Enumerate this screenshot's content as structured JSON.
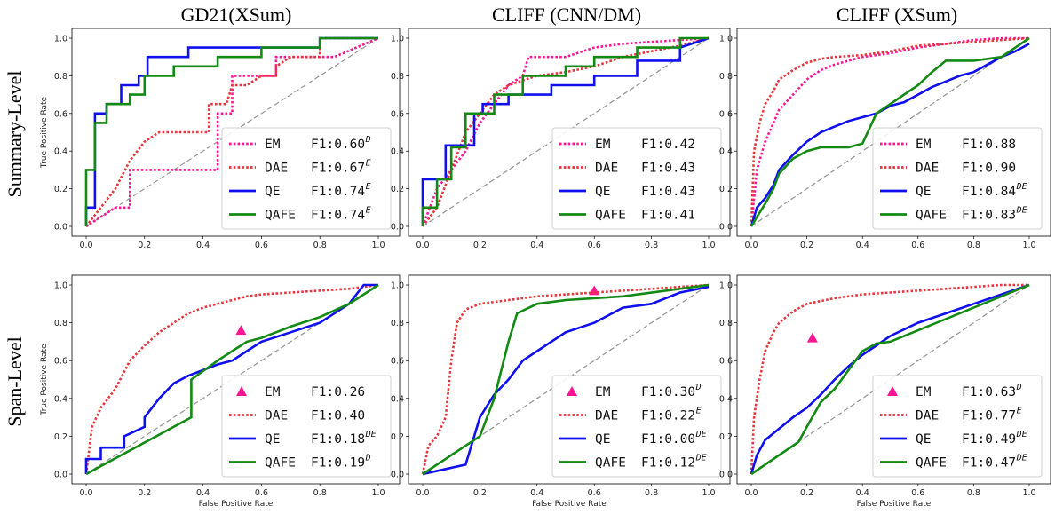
{
  "figure": {
    "col_titles": [
      "GD21(XSum)",
      "CLIFF (CNN/DM)",
      "CLIFF (XSum)"
    ],
    "row_titles": [
      "Summary-Level",
      "Span-Level"
    ],
    "xlabel": "False Positive Rate",
    "ylabel": "True Positive Rate",
    "ticks": [
      "0.0",
      "0.2",
      "0.4",
      "0.6",
      "0.8",
      "1.0"
    ]
  },
  "colors": {
    "EM": "#ff1493",
    "DAE": "#e8343c",
    "QE": "#1010ee",
    "QAFE": "#138a13",
    "diagonal": "#999999"
  },
  "chart_data": [
    {
      "type": "line",
      "dataset": "GD21(XSum)",
      "level": "Summary-Level",
      "xlabel": "",
      "ylabel": "True Positive Rate",
      "xlim": [
        0,
        1
      ],
      "ylim": [
        0,
        1
      ],
      "grid": false,
      "legend_position": "lower-right",
      "series": [
        {
          "name": "EM",
          "style": "dotted",
          "f1": "F1:0.60",
          "sup": "D",
          "x": [
            0,
            0.05,
            0.1,
            0.15,
            0.15,
            0.3,
            0.45,
            0.45,
            0.5,
            0.5,
            0.6,
            0.65,
            0.65,
            0.75,
            0.85,
            1.0
          ],
          "y": [
            0,
            0.05,
            0.1,
            0.1,
            0.3,
            0.3,
            0.3,
            0.6,
            0.6,
            0.8,
            0.8,
            0.8,
            0.9,
            0.9,
            0.9,
            1.0
          ]
        },
        {
          "name": "DAE",
          "style": "dotted",
          "f1": "F1:0.67",
          "sup": "E",
          "x": [
            0,
            0.05,
            0.1,
            0.15,
            0.2,
            0.25,
            0.35,
            0.42,
            0.42,
            0.48,
            0.5,
            0.55,
            0.6,
            0.65,
            0.65,
            0.7,
            0.8,
            0.8,
            1.0
          ],
          "y": [
            0,
            0.1,
            0.2,
            0.35,
            0.45,
            0.5,
            0.5,
            0.5,
            0.65,
            0.65,
            0.75,
            0.75,
            0.8,
            0.8,
            0.85,
            0.9,
            0.9,
            1.0,
            1.0
          ]
        },
        {
          "name": "QE",
          "style": "solid",
          "f1": "F1:0.74",
          "sup": "E",
          "x": [
            0,
            0,
            0.01,
            0.03,
            0.03,
            0.07,
            0.07,
            0.12,
            0.12,
            0.18,
            0.18,
            0.21,
            0.21,
            0.35,
            0.35,
            0.8,
            0.8,
            0.85,
            0.85,
            1.0
          ],
          "y": [
            0,
            0.1,
            0.1,
            0.1,
            0.6,
            0.6,
            0.65,
            0.65,
            0.75,
            0.75,
            0.8,
            0.8,
            0.9,
            0.9,
            0.95,
            0.95,
            1.0,
            1.0,
            1.0,
            1.0
          ]
        },
        {
          "name": "QAFE",
          "style": "solid",
          "f1": "F1:0.74",
          "sup": "E",
          "x": [
            0,
            0,
            0.03,
            0.03,
            0.07,
            0.07,
            0.15,
            0.15,
            0.2,
            0.2,
            0.3,
            0.3,
            0.45,
            0.45,
            0.6,
            0.6,
            0.8,
            0.8,
            1.0
          ],
          "y": [
            0,
            0.3,
            0.3,
            0.55,
            0.55,
            0.65,
            0.65,
            0.7,
            0.7,
            0.8,
            0.8,
            0.85,
            0.85,
            0.9,
            0.9,
            0.95,
            0.95,
            1.0,
            1.0
          ]
        }
      ]
    },
    {
      "type": "line",
      "dataset": "CLIFF (CNN/DM)",
      "level": "Summary-Level",
      "xlabel": "",
      "ylabel": "",
      "xlim": [
        0,
        1
      ],
      "ylim": [
        0,
        1
      ],
      "grid": false,
      "legend_position": "lower-right",
      "series": [
        {
          "name": "EM",
          "style": "dotted",
          "f1": "F1:0.42",
          "sup": "",
          "x": [
            0,
            0.05,
            0.1,
            0.15,
            0.2,
            0.25,
            0.3,
            0.35,
            0.37,
            0.4,
            0.5,
            0.6,
            0.7,
            0.8,
            0.9,
            1.0
          ],
          "y": [
            0,
            0.2,
            0.3,
            0.4,
            0.55,
            0.65,
            0.75,
            0.8,
            0.9,
            0.9,
            0.9,
            0.95,
            0.97,
            0.98,
            0.99,
            1.0
          ]
        },
        {
          "name": "DAE",
          "style": "dotted",
          "f1": "F1:0.43",
          "sup": "",
          "x": [
            0,
            0.05,
            0.1,
            0.15,
            0.2,
            0.25,
            0.3,
            0.4,
            0.5,
            0.6,
            0.7,
            0.8,
            0.9,
            1.0
          ],
          "y": [
            0,
            0.1,
            0.3,
            0.5,
            0.6,
            0.7,
            0.75,
            0.8,
            0.82,
            0.85,
            0.9,
            0.93,
            0.96,
            1.0
          ]
        },
        {
          "name": "QE",
          "style": "solid",
          "f1": "F1:0.43",
          "sup": "",
          "x": [
            0,
            0,
            0.08,
            0.08,
            0.18,
            0.18,
            0.21,
            0.21,
            0.3,
            0.3,
            0.45,
            0.45,
            0.6,
            0.6,
            0.75,
            0.75,
            0.9,
            0.9,
            1.0
          ],
          "y": [
            0,
            0.25,
            0.25,
            0.43,
            0.43,
            0.6,
            0.6,
            0.65,
            0.65,
            0.7,
            0.7,
            0.75,
            0.75,
            0.8,
            0.8,
            0.88,
            0.88,
            0.95,
            1.0
          ]
        },
        {
          "name": "QAFE",
          "style": "solid",
          "f1": "F1:0.41",
          "sup": "",
          "x": [
            0,
            0,
            0.05,
            0.05,
            0.1,
            0.1,
            0.15,
            0.15,
            0.25,
            0.25,
            0.35,
            0.35,
            0.5,
            0.5,
            0.6,
            0.6,
            0.75,
            0.75,
            0.9,
            0.9,
            1.0
          ],
          "y": [
            0,
            0.1,
            0.1,
            0.25,
            0.25,
            0.42,
            0.42,
            0.6,
            0.6,
            0.7,
            0.7,
            0.8,
            0.8,
            0.85,
            0.85,
            0.9,
            0.9,
            0.95,
            0.95,
            1.0,
            1.0
          ]
        }
      ]
    },
    {
      "type": "line",
      "dataset": "CLIFF (XSum)",
      "level": "Summary-Level",
      "xlabel": "",
      "ylabel": "",
      "xlim": [
        0,
        1
      ],
      "ylim": [
        0,
        1
      ],
      "grid": false,
      "legend_position": "lower-right",
      "series": [
        {
          "name": "EM",
          "style": "dotted",
          "f1": "F1:0.88",
          "sup": "",
          "x": [
            0,
            0.02,
            0.05,
            0.08,
            0.1,
            0.15,
            0.2,
            0.25,
            0.3,
            0.35,
            0.4,
            0.5,
            0.6,
            0.7,
            0.8,
            0.9,
            1.0
          ],
          "y": [
            0,
            0.3,
            0.45,
            0.55,
            0.62,
            0.7,
            0.78,
            0.83,
            0.86,
            0.88,
            0.9,
            0.92,
            0.95,
            0.97,
            0.99,
            1.0,
            1.0
          ]
        },
        {
          "name": "DAE",
          "style": "dotted",
          "f1": "F1:0.90",
          "sup": "",
          "x": [
            0,
            0.01,
            0.03,
            0.05,
            0.08,
            0.1,
            0.15,
            0.2,
            0.25,
            0.3,
            0.4,
            0.5,
            0.6,
            0.7,
            0.8,
            0.9,
            1.0
          ],
          "y": [
            0,
            0.4,
            0.55,
            0.65,
            0.72,
            0.78,
            0.83,
            0.87,
            0.89,
            0.9,
            0.91,
            0.93,
            0.96,
            0.97,
            0.98,
            0.99,
            1.0
          ]
        },
        {
          "name": "QE",
          "style": "solid",
          "f1": "F1:0.84",
          "sup": "DE",
          "x": [
            0,
            0.02,
            0.05,
            0.08,
            0.1,
            0.15,
            0.2,
            0.25,
            0.3,
            0.35,
            0.4,
            0.45,
            0.5,
            0.55,
            0.6,
            0.65,
            0.7,
            0.75,
            0.8,
            0.85,
            0.9,
            0.95,
            1.0
          ],
          "y": [
            0,
            0.1,
            0.15,
            0.22,
            0.3,
            0.38,
            0.45,
            0.5,
            0.53,
            0.56,
            0.58,
            0.6,
            0.64,
            0.66,
            0.7,
            0.74,
            0.77,
            0.8,
            0.82,
            0.86,
            0.9,
            0.93,
            0.97
          ]
        },
        {
          "name": "QAFE",
          "style": "solid",
          "f1": "F1:0.83",
          "sup": "DE",
          "x": [
            0,
            0.02,
            0.05,
            0.08,
            0.1,
            0.15,
            0.2,
            0.25,
            0.3,
            0.35,
            0.4,
            0.45,
            0.5,
            0.55,
            0.6,
            0.65,
            0.7,
            0.8,
            0.9,
            1.0
          ],
          "y": [
            0,
            0.05,
            0.12,
            0.2,
            0.28,
            0.36,
            0.4,
            0.42,
            0.42,
            0.42,
            0.44,
            0.6,
            0.65,
            0.7,
            0.75,
            0.82,
            0.88,
            0.88,
            0.9,
            1.0
          ]
        }
      ]
    },
    {
      "type": "line",
      "dataset": "GD21(XSum)",
      "level": "Span-Level",
      "xlabel": "False Positive Rate",
      "ylabel": "True Positive Rate",
      "xlim": [
        0,
        1
      ],
      "ylim": [
        0,
        1
      ],
      "grid": false,
      "legend_position": "lower-right",
      "series": [
        {
          "name": "EM",
          "style": "marker",
          "f1": "F1:0.26",
          "sup": "",
          "x": [
            0.53
          ],
          "y": [
            0.76
          ]
        },
        {
          "name": "DAE",
          "style": "dotted",
          "f1": "F1:0.40",
          "sup": "",
          "x": [
            0,
            0.02,
            0.05,
            0.1,
            0.15,
            0.2,
            0.25,
            0.3,
            0.35,
            0.4,
            0.45,
            0.5,
            0.55,
            0.6,
            0.7,
            0.8,
            0.9,
            1.0
          ],
          "y": [
            0,
            0.25,
            0.35,
            0.45,
            0.6,
            0.68,
            0.75,
            0.8,
            0.85,
            0.88,
            0.9,
            0.92,
            0.94,
            0.95,
            0.96,
            0.97,
            0.98,
            1.0
          ]
        },
        {
          "name": "QE",
          "style": "solid",
          "f1": "F1:0.18",
          "sup": "DE",
          "x": [
            0,
            0,
            0.05,
            0.05,
            0.13,
            0.13,
            0.2,
            0.2,
            0.25,
            0.3,
            0.35,
            0.4,
            0.45,
            0.5,
            0.55,
            0.6,
            0.7,
            0.8,
            0.9,
            0.95,
            1.0
          ],
          "y": [
            0,
            0.08,
            0.08,
            0.14,
            0.14,
            0.2,
            0.25,
            0.3,
            0.4,
            0.48,
            0.52,
            0.55,
            0.58,
            0.6,
            0.65,
            0.7,
            0.75,
            0.8,
            0.9,
            1.0,
            1.0
          ]
        },
        {
          "name": "QAFE",
          "style": "solid",
          "f1": "F1:0.19",
          "sup": "D",
          "x": [
            0,
            0.36,
            0.36,
            0.45,
            0.5,
            0.55,
            0.6,
            0.65,
            0.7,
            0.8,
            0.9,
            1.0
          ],
          "y": [
            0,
            0.3,
            0.5,
            0.6,
            0.65,
            0.7,
            0.72,
            0.75,
            0.78,
            0.83,
            0.9,
            1.0
          ]
        }
      ]
    },
    {
      "type": "line",
      "dataset": "CLIFF (CNN/DM)",
      "level": "Span-Level",
      "xlabel": "False Positive Rate",
      "ylabel": "",
      "xlim": [
        0,
        1
      ],
      "ylim": [
        0,
        1
      ],
      "grid": false,
      "legend_position": "lower-right",
      "series": [
        {
          "name": "EM",
          "style": "marker",
          "f1": "F1:0.30",
          "sup": "D",
          "x": [
            0.6
          ],
          "y": [
            0.97
          ]
        },
        {
          "name": "DAE",
          "style": "dotted",
          "f1": "F1:0.22",
          "sup": "E",
          "x": [
            0,
            0.02,
            0.05,
            0.08,
            0.1,
            0.12,
            0.15,
            0.2,
            0.3,
            0.4,
            0.5,
            0.6,
            0.7,
            0.8,
            0.9,
            1.0
          ],
          "y": [
            0,
            0.15,
            0.2,
            0.3,
            0.6,
            0.8,
            0.87,
            0.9,
            0.92,
            0.94,
            0.95,
            0.96,
            0.97,
            0.98,
            0.99,
            1.0
          ]
        },
        {
          "name": "QE",
          "style": "solid",
          "f1": "F1:0.00",
          "sup": "DE",
          "x": [
            0,
            0.15,
            0.18,
            0.2,
            0.25,
            0.3,
            0.35,
            0.4,
            0.5,
            0.6,
            0.7,
            0.8,
            0.9,
            1.0
          ],
          "y": [
            0,
            0.05,
            0.2,
            0.3,
            0.42,
            0.5,
            0.6,
            0.65,
            0.75,
            0.8,
            0.88,
            0.9,
            0.96,
            0.99
          ]
        },
        {
          "name": "QAFE",
          "style": "solid",
          "f1": "F1:0.12",
          "sup": "DE",
          "x": [
            0,
            0.1,
            0.2,
            0.25,
            0.3,
            0.33,
            0.4,
            0.5,
            0.6,
            0.7,
            1.0
          ],
          "y": [
            0,
            0.1,
            0.2,
            0.4,
            0.7,
            0.85,
            0.9,
            0.92,
            0.93,
            0.94,
            1.0
          ]
        }
      ]
    },
    {
      "type": "line",
      "dataset": "CLIFF (XSum)",
      "level": "Span-Level",
      "xlabel": "False Positive Rate",
      "ylabel": "",
      "xlim": [
        0,
        1
      ],
      "ylim": [
        0,
        1
      ],
      "grid": false,
      "legend_position": "lower-right",
      "series": [
        {
          "name": "EM",
          "style": "marker",
          "f1": "F1:0.63",
          "sup": "D",
          "x": [
            0.22
          ],
          "y": [
            0.72
          ]
        },
        {
          "name": "DAE",
          "style": "dotted",
          "f1": "F1:0.77",
          "sup": "E",
          "x": [
            0,
            0.01,
            0.03,
            0.05,
            0.08,
            0.1,
            0.15,
            0.2,
            0.3,
            0.4,
            0.5,
            0.6,
            0.7,
            0.8,
            0.9,
            1.0
          ],
          "y": [
            0,
            0.3,
            0.5,
            0.65,
            0.75,
            0.8,
            0.86,
            0.9,
            0.93,
            0.95,
            0.96,
            0.97,
            0.98,
            0.99,
            1.0,
            1.0
          ]
        },
        {
          "name": "QE",
          "style": "solid",
          "f1": "F1:0.49",
          "sup": "DE",
          "x": [
            0,
            0.02,
            0.05,
            0.1,
            0.15,
            0.2,
            0.25,
            0.3,
            0.35,
            0.4,
            0.45,
            0.5,
            0.6,
            0.7,
            0.8,
            0.9,
            1.0
          ],
          "y": [
            0,
            0.1,
            0.18,
            0.24,
            0.3,
            0.35,
            0.42,
            0.5,
            0.57,
            0.63,
            0.68,
            0.73,
            0.8,
            0.85,
            0.9,
            0.95,
            1.0
          ]
        },
        {
          "name": "QAFE",
          "style": "solid",
          "f1": "F1:0.47",
          "sup": "DE",
          "x": [
            0,
            0.17,
            0.2,
            0.25,
            0.3,
            0.35,
            0.4,
            0.45,
            0.5,
            1.0
          ],
          "y": [
            0,
            0.17,
            0.25,
            0.38,
            0.45,
            0.55,
            0.65,
            0.69,
            0.7,
            1.0
          ]
        }
      ]
    }
  ]
}
